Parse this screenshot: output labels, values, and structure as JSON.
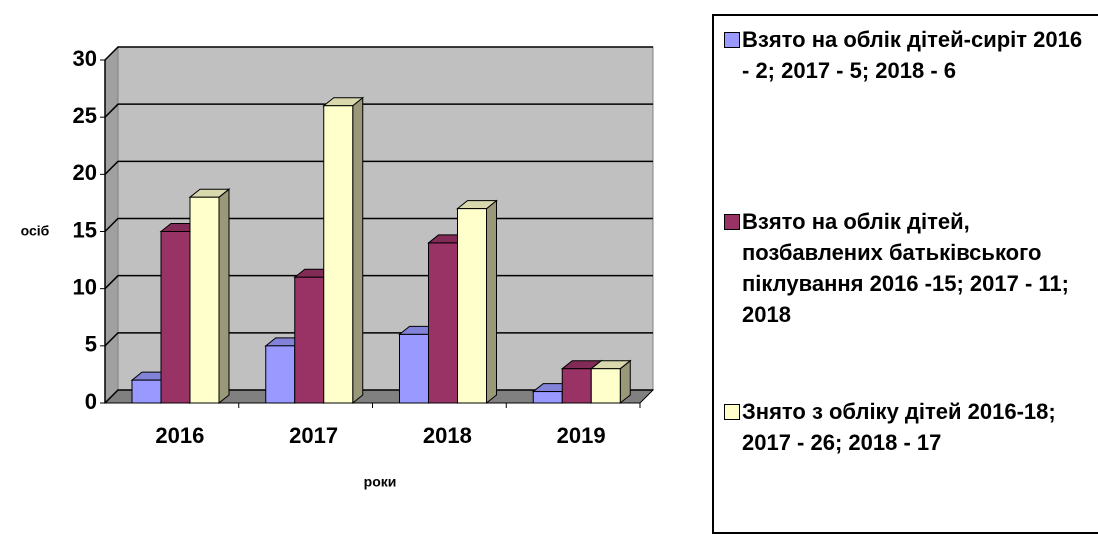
{
  "chart_data": {
    "type": "bar3d",
    "categories": [
      "2016",
      "2017",
      "2018",
      "2019"
    ],
    "series": [
      {
        "name": "Взято на облік дітей-сиріт 2016 - 2; 2017 - 5; 2018 - 6",
        "color": "#9999ff",
        "values": [
          2,
          5,
          6,
          1
        ]
      },
      {
        "name": "Взято на облік дітей, позбавлених батьківського піклування 2016 -15; 2017 - 11; 2018",
        "color": "#993366",
        "values": [
          15,
          11,
          14,
          3
        ]
      },
      {
        "name": "Знято з обліку дітей 2016-18; 2017 - 26; 2018 - 17",
        "color": "#ffffcc",
        "values": [
          18,
          26,
          17,
          3
        ]
      }
    ],
    "x_label": "роки",
    "y_label": "осіб",
    "ylim": [
      0,
      30
    ],
    "yticks": [
      0,
      5,
      10,
      15,
      20,
      25,
      30
    ],
    "grid": true,
    "legend": "right"
  }
}
